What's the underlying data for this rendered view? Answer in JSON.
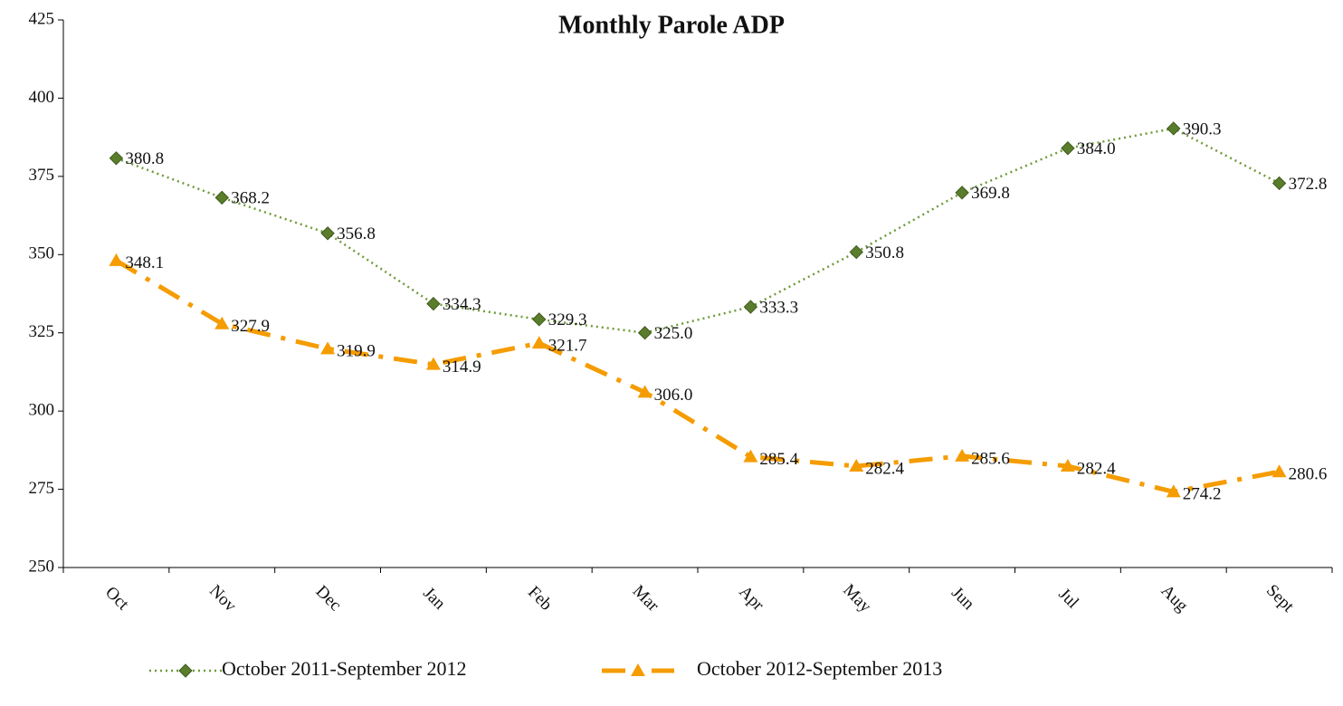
{
  "chart_data": {
    "type": "line",
    "title": "Monthly Parole ADP",
    "categories": [
      "Oct",
      "Nov",
      "Dec",
      "Jan",
      "Feb",
      "Mar",
      "Apr",
      "May",
      "Jun",
      "Jul",
      "Aug",
      "Sept"
    ],
    "series": [
      {
        "name": "October 2011-September 2012",
        "color": "#6f9a3a",
        "marker_color": "#5a7d2c",
        "line_style": "dotted",
        "marker": "diamond",
        "values": [
          380.8,
          368.2,
          356.8,
          334.3,
          329.3,
          325.0,
          333.3,
          350.8,
          369.8,
          384.0,
          390.3,
          372.8
        ],
        "value_labels": [
          "380.8",
          "368.2",
          "356.8",
          "334.3",
          "329.3",
          "325.0",
          "333.3",
          "350.8",
          "369.8",
          "384.0",
          "390.3",
          "372.8"
        ]
      },
      {
        "name": "October 2012-September 2013",
        "color": "#f59c00",
        "marker_color": "#f59c00",
        "line_style": "dashdot",
        "marker": "triangle",
        "values": [
          348.1,
          327.9,
          319.9,
          314.9,
          321.7,
          306.0,
          285.4,
          282.4,
          285.6,
          282.4,
          274.2,
          280.6
        ],
        "value_labels": [
          "348.1",
          "327.9",
          "319.9",
          "314.9",
          "321.7",
          "306.0",
          "285.4",
          "282.4",
          "285.6",
          "282.4",
          "274.2",
          "280.6"
        ]
      }
    ],
    "ylim": [
      250,
      425
    ],
    "yticks": [
      250,
      275,
      300,
      325,
      350,
      375,
      400,
      425
    ],
    "grid": false,
    "legend": "bottom"
  }
}
